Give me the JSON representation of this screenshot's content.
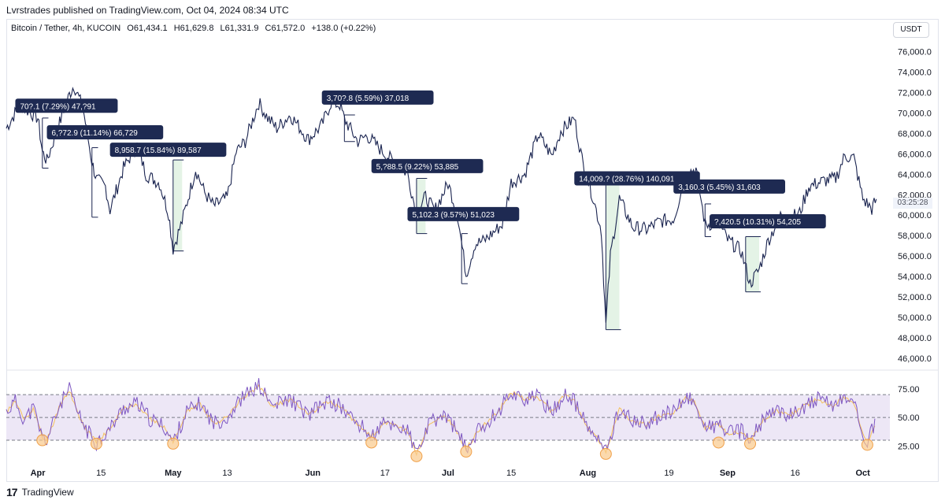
{
  "header": {
    "publisher": "Lvrstrades published on TradingView.com, Oct 04, 2024 08:34 UTC",
    "symbol": "Bitcoin / Tether, 4h, KUCOIN",
    "open": "O61,434.1",
    "high": "H61,629.8",
    "low": "L61,331.9",
    "close": "C61,572.0",
    "change": "+138.0 (+0.22%)",
    "currency": "USDT",
    "countdown": "03:25:28"
  },
  "footer": {
    "brand": "TradingView",
    "logo_glyph": "17"
  },
  "colors": {
    "candle": "#1a2450",
    "annotation_bg": "#1e2a52",
    "drawdown_fill": "#e4f3e6",
    "rsi_line": "#7e57c2",
    "rsi_ma": "#f5c15c",
    "rsi_band": "#ede7f6",
    "rsi_circle_fill": "#f9c98a",
    "rsi_circle_stroke": "#f0a14b"
  },
  "chart_data": [
    {
      "type": "line",
      "title": "Bitcoin / Tether, 4h, KUCOIN",
      "price_axis": [
        "76,000.0",
        "74,000.0",
        "72,000.0",
        "70,000.0",
        "68,000.0",
        "66,000.0",
        "64,000.0",
        "62,000.0",
        "60,000.0",
        "58,000.0",
        "56,000.0",
        "54,000.0",
        "52,000.0",
        "50,000.0",
        "48,000.0",
        "46,000.0"
      ],
      "ylim": [
        45000,
        77500
      ],
      "time_axis": [
        "Apr",
        "15",
        "May",
        "13",
        "Jun",
        "17",
        "Jul",
        "15",
        "Aug",
        "19",
        "Sep",
        "16",
        "Oct"
      ],
      "xlim": [
        "2024-03-25",
        "2024-10-07"
      ],
      "series": [
        {
          "values_by_date": [
            [
              "2024-03-25",
              68500
            ],
            [
              "2024-03-28",
              70800
            ],
            [
              "2024-04-01",
              69500
            ],
            [
              "2024-04-02",
              66200
            ],
            [
              "2024-04-03",
              65300
            ],
            [
              "2024-04-05",
              68000
            ],
            [
              "2024-04-08",
              71800
            ],
            [
              "2024-04-09",
              72700
            ],
            [
              "2024-04-11",
              70500
            ],
            [
              "2024-04-13",
              65200
            ],
            [
              "2024-04-14",
              63500
            ],
            [
              "2024-04-16",
              62800
            ],
            [
              "2024-04-17",
              60500
            ],
            [
              "2024-04-20",
              64600
            ],
            [
              "2024-04-23",
              66800
            ],
            [
              "2024-04-25",
              64000
            ],
            [
              "2024-04-28",
              63100
            ],
            [
              "2024-04-30",
              60200
            ],
            [
              "2024-05-01",
              56700
            ],
            [
              "2024-05-03",
              59400
            ],
            [
              "2024-05-06",
              64500
            ],
            [
              "2024-05-08",
              62200
            ],
            [
              "2024-05-10",
              60900
            ],
            [
              "2024-05-13",
              61700
            ],
            [
              "2024-05-15",
              66200
            ],
            [
              "2024-05-17",
              67200
            ],
            [
              "2024-05-20",
              71000
            ],
            [
              "2024-05-22",
              69500
            ],
            [
              "2024-05-24",
              68500
            ],
            [
              "2024-05-27",
              69800
            ],
            [
              "2024-05-31",
              67400
            ],
            [
              "2024-06-03",
              68800
            ],
            [
              "2024-06-05",
              71000
            ],
            [
              "2024-06-07",
              70800
            ],
            [
              "2024-06-08",
              69400
            ],
            [
              "2024-06-11",
              67200
            ],
            [
              "2024-06-13",
              67800
            ],
            [
              "2024-06-17",
              66000
            ],
            [
              "2024-06-20",
              64800
            ],
            [
              "2024-06-22",
              64100
            ],
            [
              "2024-06-24",
              60100
            ],
            [
              "2024-06-26",
              61800
            ],
            [
              "2024-06-28",
              60400
            ],
            [
              "2024-07-01",
              63100
            ],
            [
              "2024-07-03",
              60300
            ],
            [
              "2024-07-05",
              54200
            ],
            [
              "2024-07-07",
              57200
            ],
            [
              "2024-07-09",
              57500
            ],
            [
              "2024-07-13",
              59100
            ],
            [
              "2024-07-15",
              63200
            ],
            [
              "2024-07-18",
              64000
            ],
            [
              "2024-07-21",
              67900
            ],
            [
              "2024-07-24",
              65800
            ],
            [
              "2024-07-26",
              68200
            ],
            [
              "2024-07-29",
              69500
            ],
            [
              "2024-07-31",
              64800
            ],
            [
              "2024-08-02",
              62000
            ],
            [
              "2024-08-04",
              58500
            ],
            [
              "2024-08-05",
              49200
            ],
            [
              "2024-08-06",
              56000
            ],
            [
              "2024-08-08",
              61600
            ],
            [
              "2024-08-11",
              58800
            ],
            [
              "2024-08-14",
              58600
            ],
            [
              "2024-08-17",
              59400
            ],
            [
              "2024-08-20",
              59600
            ],
            [
              "2024-08-23",
              64200
            ],
            [
              "2024-08-25",
              64500
            ],
            [
              "2024-08-27",
              59100
            ],
            [
              "2024-08-30",
              59200
            ],
            [
              "2024-09-01",
              57600
            ],
            [
              "2024-09-04",
              56500
            ],
            [
              "2024-09-06",
              53300
            ],
            [
              "2024-09-08",
              54700
            ],
            [
              "2024-09-10",
              57500
            ],
            [
              "2024-09-13",
              60200
            ],
            [
              "2024-09-15",
              59800
            ],
            [
              "2024-09-17",
              60200
            ],
            [
              "2024-09-19",
              62800
            ],
            [
              "2024-09-22",
              63300
            ],
            [
              "2024-09-25",
              63600
            ],
            [
              "2024-09-27",
              65800
            ],
            [
              "2024-09-29",
              65600
            ],
            [
              "2024-10-01",
              61600
            ],
            [
              "2024-10-03",
              60600
            ],
            [
              "2024-10-04",
              61572
            ]
          ]
        }
      ],
      "annotations": [
        {
          "label": "70?.1 (7.29%) 47,?91",
          "date": "2024-03-27",
          "price": 70700,
          "box": {
            "from": "2024-04-02",
            "to": "2024-04-03",
            "top": 69500,
            "bottom": 64600
          }
        },
        {
          "label": "6,?72.9 (11.14%) 66,729",
          "date": "2024-04-03",
          "price": 68100,
          "box": {
            "from": "2024-04-13",
            "to": "2024-04-14",
            "top": 66600,
            "bottom": 59800
          }
        },
        {
          "label": "8,958.7 (15.84%) 89,587",
          "date": "2024-04-17",
          "price": 66400,
          "box": {
            "from": "2024-05-01",
            "to": "2024-05-03",
            "top": 65400,
            "bottom": 56500
          },
          "filled": true
        },
        {
          "label": "3,70?.8 (5.59%) 37,018",
          "date": "2024-06-03",
          "price": 71500,
          "box": {
            "from": "2024-06-08",
            "to": "2024-06-10",
            "top": 69800,
            "bottom": 67200
          }
        },
        {
          "label": "5,?88.5 (9.22%) 53,885",
          "date": "2024-06-14",
          "price": 64800,
          "box": {
            "from": "2024-06-24",
            "to": "2024-06-26",
            "top": 63600,
            "bottom": 58200
          },
          "filled": true
        },
        {
          "label": "5,102.3 (9.57%) 51,023",
          "date": "2024-06-22",
          "price": 60100,
          "box": {
            "from": "2024-07-04",
            "to": "2024-07-05",
            "top": 58200,
            "bottom": 53300
          }
        },
        {
          "label": "14,009.? (28.76%) 140,091",
          "date": "2024-07-29",
          "price": 63600,
          "box": {
            "from": "2024-08-05",
            "to": "2024-08-08",
            "top": 63100,
            "bottom": 48800
          },
          "filled": true
        },
        {
          "label": "3,160.3 (5.45%) 31,603",
          "date": "2024-08-20",
          "price": 62800,
          "box": {
            "from": "2024-08-27",
            "to": "2024-08-28",
            "top": 61100,
            "bottom": 57900
          }
        },
        {
          "label": "?,420.5 (10.31%) 54,205",
          "date": "2024-08-28",
          "price": 59400,
          "box": {
            "from": "2024-09-05",
            "to": "2024-09-08",
            "top": 57900,
            "bottom": 52500
          },
          "filled": true
        }
      ]
    },
    {
      "type": "line",
      "title": "RSI",
      "y_axis": [
        "75.00",
        "50.00",
        "25.00"
      ],
      "ylim": [
        10,
        86
      ],
      "band": [
        30,
        70
      ],
      "midline": 50,
      "series": [
        {
          "values_by_date": [
            [
              "2024-03-25",
              55
            ],
            [
              "2024-03-27",
              64
            ],
            [
              "2024-03-29",
              48
            ],
            [
              "2024-03-31",
              58
            ],
            [
              "2024-04-02",
              32
            ],
            [
              "2024-04-03",
              30
            ],
            [
              "2024-04-06",
              62
            ],
            [
              "2024-04-08",
              74
            ],
            [
              "2024-04-10",
              52
            ],
            [
              "2024-04-12",
              38
            ],
            [
              "2024-04-14",
              28
            ],
            [
              "2024-04-17",
              40
            ],
            [
              "2024-04-20",
              58
            ],
            [
              "2024-04-23",
              62
            ],
            [
              "2024-04-26",
              48
            ],
            [
              "2024-04-29",
              42
            ],
            [
              "2024-05-01",
              28
            ],
            [
              "2024-05-04",
              55
            ],
            [
              "2024-05-07",
              62
            ],
            [
              "2024-05-10",
              45
            ],
            [
              "2024-05-13",
              50
            ],
            [
              "2024-05-16",
              66
            ],
            [
              "2024-05-20",
              78
            ],
            [
              "2024-05-23",
              60
            ],
            [
              "2024-05-27",
              66
            ],
            [
              "2024-05-31",
              52
            ],
            [
              "2024-06-04",
              64
            ],
            [
              "2024-06-07",
              60
            ],
            [
              "2024-06-10",
              48
            ],
            [
              "2024-06-12",
              41
            ],
            [
              "2024-06-14",
              33
            ],
            [
              "2024-06-17",
              45
            ],
            [
              "2024-06-20",
              42
            ],
            [
              "2024-06-22",
              38
            ],
            [
              "2024-06-24",
              18
            ],
            [
              "2024-06-27",
              45
            ],
            [
              "2024-06-30",
              52
            ],
            [
              "2024-07-02",
              44
            ],
            [
              "2024-07-05",
              22
            ],
            [
              "2024-07-08",
              40
            ],
            [
              "2024-07-12",
              55
            ],
            [
              "2024-07-15",
              72
            ],
            [
              "2024-07-18",
              66
            ],
            [
              "2024-07-21",
              68
            ],
            [
              "2024-07-24",
              55
            ],
            [
              "2024-07-27",
              70
            ],
            [
              "2024-07-29",
              64
            ],
            [
              "2024-08-01",
              40
            ],
            [
              "2024-08-03",
              32
            ],
            [
              "2024-08-05",
              20
            ],
            [
              "2024-08-08",
              58
            ],
            [
              "2024-08-11",
              46
            ],
            [
              "2024-08-14",
              44
            ],
            [
              "2024-08-17",
              52
            ],
            [
              "2024-08-20",
              54
            ],
            [
              "2024-08-23",
              68
            ],
            [
              "2024-08-25",
              62
            ],
            [
              "2024-08-27",
              40
            ],
            [
              "2024-08-30",
              44
            ],
            [
              "2024-09-01",
              36
            ],
            [
              "2024-09-04",
              38
            ],
            [
              "2024-09-06",
              30
            ],
            [
              "2024-09-09",
              48
            ],
            [
              "2024-09-12",
              56
            ],
            [
              "2024-09-15",
              52
            ],
            [
              "2024-09-18",
              60
            ],
            [
              "2024-09-21",
              66
            ],
            [
              "2024-09-24",
              60
            ],
            [
              "2024-09-27",
              68
            ],
            [
              "2024-09-29",
              62
            ],
            [
              "2024-10-01",
              38
            ],
            [
              "2024-10-02",
              28
            ],
            [
              "2024-10-03",
              38
            ],
            [
              "2024-10-04",
              45
            ]
          ]
        }
      ],
      "oversold_markers": [
        {
          "date": "2024-04-02",
          "value": 30
        },
        {
          "date": "2024-04-14",
          "value": 27
        },
        {
          "date": "2024-05-01",
          "value": 27
        },
        {
          "date": "2024-06-14",
          "value": 28
        },
        {
          "date": "2024-06-24",
          "value": 16
        },
        {
          "date": "2024-07-05",
          "value": 20
        },
        {
          "date": "2024-08-05",
          "value": 18
        },
        {
          "date": "2024-08-30",
          "value": 28
        },
        {
          "date": "2024-09-06",
          "value": 27
        },
        {
          "date": "2024-10-02",
          "value": 26
        }
      ]
    }
  ]
}
